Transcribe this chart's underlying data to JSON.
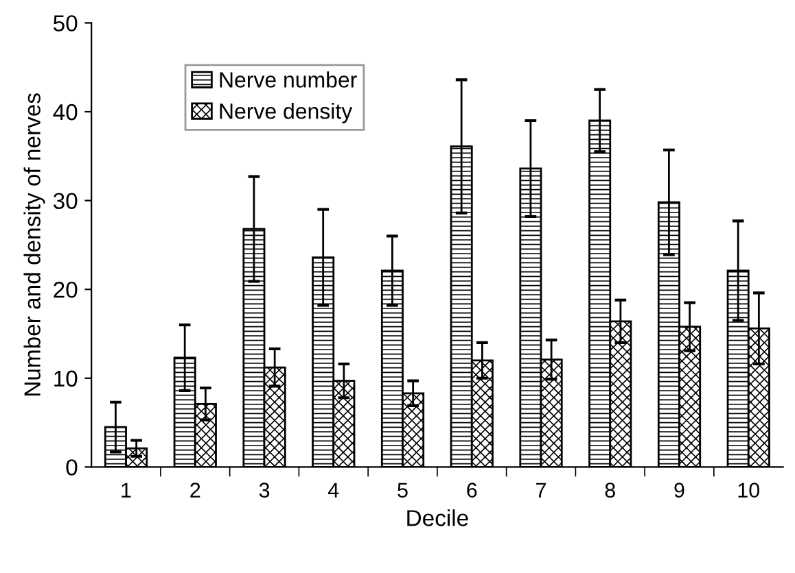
{
  "chart_data": {
    "type": "bar",
    "xlabel": "Decile",
    "ylabel": "Number and density of nerves",
    "categories": [
      "1",
      "2",
      "3",
      "4",
      "5",
      "6",
      "7",
      "8",
      "9",
      "10"
    ],
    "series": [
      {
        "name": "Nerve number",
        "color": "#000000",
        "values": [
          4.5,
          12.3,
          26.8,
          23.6,
          22.1,
          36.1,
          33.6,
          39.0,
          29.8,
          22.1
        ],
        "errors": [
          2.8,
          3.7,
          5.9,
          5.4,
          3.9,
          7.5,
          5.4,
          3.5,
          5.9,
          5.6
        ]
      },
      {
        "name": "Nerve density",
        "color": "#000000",
        "values": [
          2.1,
          7.1,
          11.2,
          9.7,
          8.3,
          12.0,
          12.1,
          16.4,
          15.8,
          15.6
        ],
        "errors": [
          0.9,
          1.8,
          2.1,
          1.9,
          1.4,
          2.0,
          2.2,
          2.4,
          2.7,
          4.0
        ]
      }
    ],
    "ylim": [
      0,
      50
    ],
    "yticks": [
      0,
      10,
      20,
      30,
      40,
      50
    ],
    "grid": false,
    "legend": "top left"
  }
}
